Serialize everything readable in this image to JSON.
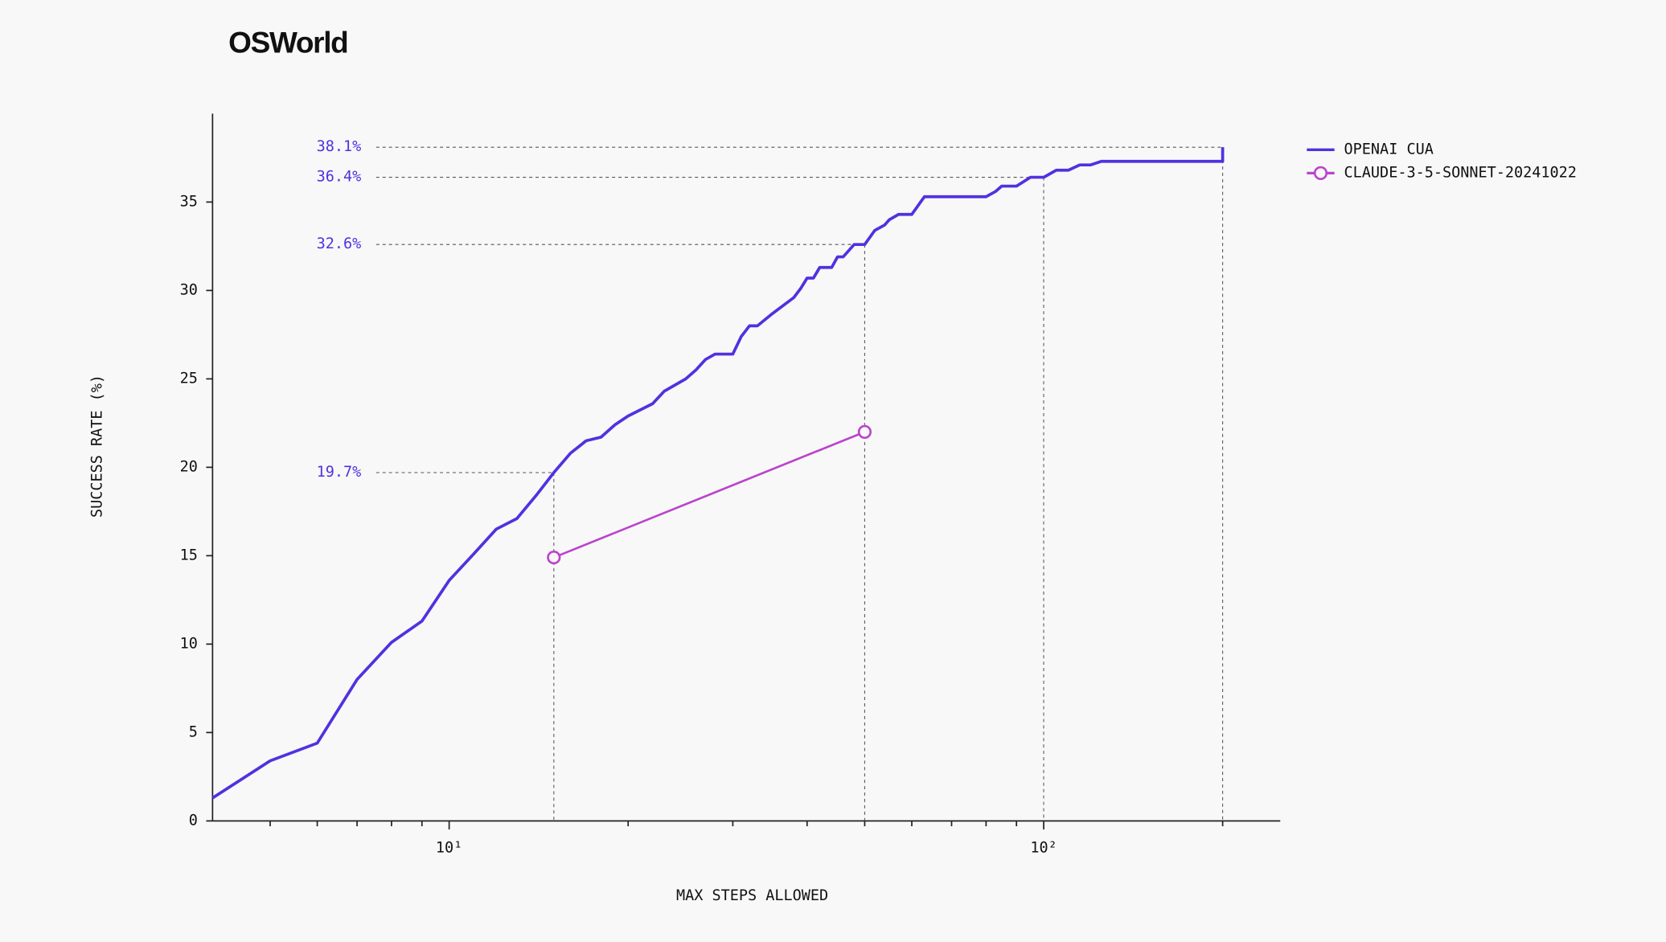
{
  "chart_data": {
    "type": "line",
    "title": "OSWorld",
    "x_label": "MAX STEPS ALLOWED",
    "y_label": "SUCCESS RATE (%)",
    "x_scale": "log",
    "xlim": [
      4,
      250
    ],
    "xticks": [
      {
        "value": 10,
        "label": "10¹"
      },
      {
        "value": 100,
        "label": "10²"
      }
    ],
    "minor_xticks": [
      5,
      6,
      7,
      8,
      9,
      20,
      30,
      40,
      50,
      60,
      70,
      80,
      90,
      200
    ],
    "ylim": [
      0,
      40
    ],
    "yticks": [
      0,
      5,
      10,
      15,
      20,
      25,
      30,
      35
    ],
    "legend": "top-right",
    "series": [
      {
        "name": "OPENAI CUA",
        "color": "#5131e0",
        "marker": "none",
        "x": [
          4,
          5,
          6,
          7,
          8,
          9,
          10,
          11,
          12,
          13,
          14,
          15,
          16,
          17,
          18,
          19,
          20,
          22,
          23,
          25,
          26,
          27,
          28,
          30,
          31,
          32,
          33,
          35,
          38,
          39,
          40,
          41,
          42,
          44,
          45,
          46,
          48,
          50,
          52,
          54,
          55,
          57,
          60,
          63,
          80,
          83,
          85,
          90,
          95,
          100,
          105,
          110,
          115,
          120,
          125,
          200,
          200
        ],
        "values": [
          1.3,
          3.4,
          4.4,
          8.0,
          10.1,
          11.3,
          13.6,
          15.1,
          16.5,
          17.1,
          18.4,
          19.7,
          20.8,
          21.5,
          21.7,
          22.4,
          22.9,
          23.6,
          24.3,
          25.0,
          25.5,
          26.1,
          26.4,
          26.4,
          27.4,
          28.0,
          28.0,
          28.7,
          29.6,
          30.1,
          30.7,
          30.7,
          31.3,
          31.3,
          31.9,
          31.9,
          32.6,
          32.6,
          33.4,
          33.7,
          34.0,
          34.3,
          34.3,
          35.3,
          35.3,
          35.6,
          35.9,
          35.9,
          36.4,
          36.4,
          36.8,
          36.8,
          37.1,
          37.1,
          37.3,
          37.3,
          38.1
        ]
      },
      {
        "name": "CLAUDE-3-5-SONNET-20241022",
        "color": "#bb44cc",
        "marker": "circle",
        "x": [
          15,
          50
        ],
        "values": [
          14.9,
          22.0
        ]
      }
    ],
    "annotations": [
      {
        "label": "38.1%",
        "value": 38.1,
        "x": 200
      },
      {
        "label": "36.4%",
        "value": 36.4,
        "x": 100
      },
      {
        "label": "32.6%",
        "value": 32.6,
        "x": 50
      },
      {
        "label": "19.7%",
        "value": 19.7,
        "x": 15
      }
    ]
  }
}
